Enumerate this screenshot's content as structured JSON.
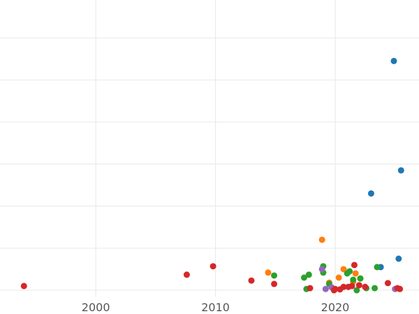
{
  "chart_data": {
    "type": "scatter",
    "title": "",
    "xlabel": "",
    "ylabel": "",
    "grid": true,
    "xlim": [
      1992,
      2027
    ],
    "ylim": [
      -0.15,
      6.9
    ],
    "xticks": [
      2000,
      2010,
      2020
    ],
    "xtick_labels": [
      "2000",
      "2010",
      "2020"
    ],
    "yticks": [
      0,
      1,
      2,
      3,
      4,
      5,
      6,
      7
    ],
    "series": [
      {
        "color": "#1f77b4",
        "points": [
          {
            "x": 2024.9,
            "y": 5.45
          },
          {
            "x": 2025.5,
            "y": 2.85
          },
          {
            "x": 2023.0,
            "y": 2.3
          },
          {
            "x": 2025.3,
            "y": 0.75
          },
          {
            "x": 2023.8,
            "y": 0.55
          }
        ]
      },
      {
        "color": "#ff7f0e",
        "points": [
          {
            "x": 2018.9,
            "y": 1.2
          },
          {
            "x": 2014.4,
            "y": 0.42
          },
          {
            "x": 2020.7,
            "y": 0.5
          },
          {
            "x": 2020.3,
            "y": 0.3
          },
          {
            "x": 2021.7,
            "y": 0.4
          },
          {
            "x": 2019.5,
            "y": 0.18
          },
          {
            "x": 2021.5,
            "y": 0.2
          },
          {
            "x": 2022.1,
            "y": 0.28
          }
        ]
      },
      {
        "color": "#2ca02c",
        "points": [
          {
            "x": 2019.0,
            "y": 0.57
          },
          {
            "x": 2014.9,
            "y": 0.35
          },
          {
            "x": 2017.8,
            "y": 0.37
          },
          {
            "x": 2017.4,
            "y": 0.3
          },
          {
            "x": 2019.0,
            "y": 0.42
          },
          {
            "x": 2019.5,
            "y": 0.15
          },
          {
            "x": 2021.0,
            "y": 0.4
          },
          {
            "x": 2021.2,
            "y": 0.45
          },
          {
            "x": 2021.5,
            "y": 0.25
          },
          {
            "x": 2022.1,
            "y": 0.28
          },
          {
            "x": 2023.5,
            "y": 0.55
          },
          {
            "x": 2017.6,
            "y": 0.03
          },
          {
            "x": 2021.8,
            "y": 0.0
          },
          {
            "x": 2022.6,
            "y": 0.05
          },
          {
            "x": 2023.3,
            "y": 0.05
          }
        ]
      },
      {
        "color": "#9467bd",
        "points": [
          {
            "x": 2018.9,
            "y": 0.5
          },
          {
            "x": 2019.2,
            "y": 0.03
          },
          {
            "x": 2025.0,
            "y": 0.03
          },
          {
            "x": 2019.7,
            "y": 0.07
          }
        ]
      },
      {
        "color": "#d62728",
        "points": [
          {
            "x": 1994.0,
            "y": 0.1
          },
          {
            "x": 2007.6,
            "y": 0.37
          },
          {
            "x": 2009.8,
            "y": 0.57
          },
          {
            "x": 2013.0,
            "y": 0.23
          },
          {
            "x": 2014.9,
            "y": 0.15
          },
          {
            "x": 2017.9,
            "y": 0.05
          },
          {
            "x": 2019.9,
            "y": 0.0
          },
          {
            "x": 2020.4,
            "y": 0.02
          },
          {
            "x": 2020.7,
            "y": 0.08
          },
          {
            "x": 2021.1,
            "y": 0.08
          },
          {
            "x": 2021.6,
            "y": 0.6
          },
          {
            "x": 2022.0,
            "y": 0.12
          },
          {
            "x": 2022.5,
            "y": 0.08
          },
          {
            "x": 2024.4,
            "y": 0.17
          },
          {
            "x": 2025.2,
            "y": 0.05
          },
          {
            "x": 2025.4,
            "y": 0.03
          },
          {
            "x": 2021.4,
            "y": 0.1
          },
          {
            "x": 2020.0,
            "y": 0.03
          }
        ]
      }
    ]
  }
}
